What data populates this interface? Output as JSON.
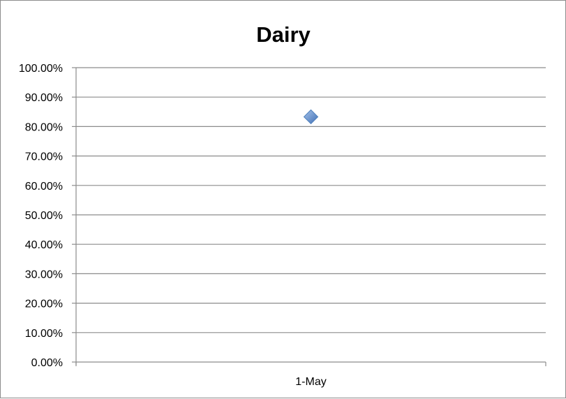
{
  "chart_data": {
    "type": "scatter",
    "title": "Dairy",
    "xlabel": "",
    "ylabel": "",
    "categories": [
      "1-May"
    ],
    "series": [
      {
        "values": [
          0.833
        ],
        "marker": "diamond",
        "color": "#4f81bd"
      }
    ],
    "ylim": [
      0,
      1
    ],
    "y_ticks": [
      0,
      0.1,
      0.2,
      0.3,
      0.4,
      0.5,
      0.6,
      0.7,
      0.8,
      0.9,
      1.0
    ],
    "y_tick_labels": [
      "0.00%",
      "10.00%",
      "20.00%",
      "30.00%",
      "40.00%",
      "50.00%",
      "60.00%",
      "70.00%",
      "80.00%",
      "90.00%",
      "100.00%"
    ],
    "grid": true,
    "legend": "none",
    "gridline_color": "#8c8c8c"
  }
}
